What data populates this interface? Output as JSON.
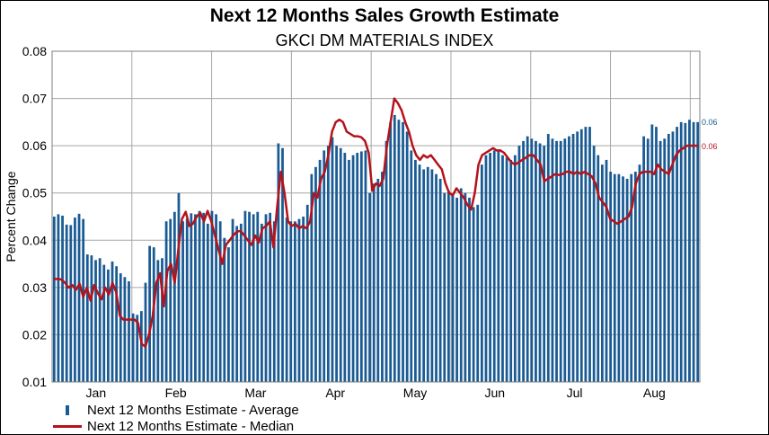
{
  "chart_data": {
    "type": "bar",
    "title": "Next 12 Months Sales Growth Estimate",
    "subtitle": "GKCI DM MATERIALS INDEX",
    "ylabel": "Percent Change",
    "xlabel": "",
    "ylim": [
      0.01,
      0.08
    ],
    "yticks": [
      "0.01",
      "0.02",
      "0.03",
      "0.04",
      "0.05",
      "0.06",
      "0.07",
      "0.08"
    ],
    "month_labels": [
      "Jan",
      "Feb",
      "Mar",
      "Apr",
      "May",
      "Jun",
      "Jul",
      "Aug"
    ],
    "grid": true,
    "legend_position": "bottom-left",
    "colors": {
      "average": "#1a5b94",
      "median": "#b5121b"
    },
    "end_labels": {
      "average": "0.06",
      "median": "0.06"
    },
    "series": [
      {
        "name": "Next 12 Months Estimate - Average",
        "type": "bar",
        "values": [
          0.045,
          0.0455,
          0.0452,
          0.0433,
          0.0432,
          0.0448,
          0.0456,
          0.0445,
          0.037,
          0.0368,
          0.0358,
          0.0362,
          0.0348,
          0.0338,
          0.0355,
          0.0345,
          0.033,
          0.0322,
          0.0313,
          0.0245,
          0.0242,
          0.025,
          0.031,
          0.0388,
          0.0385,
          0.0358,
          0.0362,
          0.044,
          0.0445,
          0.046,
          0.05,
          0.044,
          0.0445,
          0.0457,
          0.0455,
          0.0462,
          0.0458,
          0.0435,
          0.0462,
          0.0455,
          0.044,
          0.0405,
          0.0385,
          0.0445,
          0.043,
          0.0435,
          0.0462,
          0.046,
          0.0455,
          0.046,
          0.0435,
          0.0455,
          0.0458,
          0.044,
          0.0605,
          0.0595,
          0.0448,
          0.044,
          0.044,
          0.0445,
          0.045,
          0.0475,
          0.054,
          0.0555,
          0.057,
          0.059,
          0.06,
          0.0618,
          0.06,
          0.0595,
          0.0585,
          0.057,
          0.058,
          0.0585,
          0.0588,
          0.059,
          0.05,
          0.052,
          0.053,
          0.0545,
          0.061,
          0.065,
          0.0665,
          0.0655,
          0.065,
          0.063,
          0.059,
          0.057,
          0.056,
          0.055,
          0.0555,
          0.055,
          0.054,
          0.053,
          0.05,
          0.0505,
          0.0495,
          0.049,
          0.051,
          0.05,
          0.049,
          0.047,
          0.0475,
          0.056,
          0.058,
          0.0585,
          0.059,
          0.059,
          0.058,
          0.0575,
          0.057,
          0.058,
          0.06,
          0.061,
          0.062,
          0.0615,
          0.061,
          0.0605,
          0.06,
          0.0625,
          0.0615,
          0.061,
          0.061,
          0.0615,
          0.062,
          0.0625,
          0.063,
          0.0635,
          0.064,
          0.064,
          0.06,
          0.058,
          0.056,
          0.057,
          0.0545,
          0.054,
          0.054,
          0.0535,
          0.053,
          0.054,
          0.0545,
          0.056,
          0.062,
          0.0615,
          0.0645,
          0.064,
          0.061,
          0.0615,
          0.0625,
          0.063,
          0.064,
          0.065,
          0.0648,
          0.0655,
          0.065,
          0.065
        ]
      },
      {
        "name": "Next 12 Months Estimate - Median",
        "type": "line",
        "values": [
          0.0318,
          0.0318,
          0.0317,
          0.031,
          0.03,
          0.0305,
          0.0295,
          0.0308,
          0.028,
          0.03,
          0.0272,
          0.0305,
          0.0288,
          0.0275,
          0.03,
          0.0285,
          0.031,
          0.029,
          0.024,
          0.0232,
          0.0232,
          0.0232,
          0.0232,
          0.0225,
          0.018,
          0.0175,
          0.02,
          0.024,
          0.031,
          0.033,
          0.026,
          0.0335,
          0.035,
          0.031,
          0.038,
          0.0445,
          0.046,
          0.043,
          0.0435,
          0.045,
          0.0458,
          0.044,
          0.0462,
          0.044,
          0.041,
          0.038,
          0.035,
          0.039,
          0.04,
          0.041,
          0.0418,
          0.042,
          0.041,
          0.04,
          0.039,
          0.041,
          0.0395,
          0.0425,
          0.043,
          0.044,
          0.0385,
          0.047,
          0.0545,
          0.05,
          0.044,
          0.043,
          0.0435,
          0.0425,
          0.043,
          0.0425,
          0.044,
          0.05,
          0.049,
          0.053,
          0.0545,
          0.058,
          0.063,
          0.065,
          0.0655,
          0.065,
          0.063,
          0.0625,
          0.062,
          0.062,
          0.0618,
          0.061,
          0.0585,
          0.0505,
          0.052,
          0.0515,
          0.053,
          0.06,
          0.065,
          0.07,
          0.069,
          0.0675,
          0.065,
          0.063,
          0.06,
          0.058,
          0.057,
          0.058,
          0.0575,
          0.058,
          0.057,
          0.056,
          0.055,
          0.052,
          0.05,
          0.0495,
          0.051,
          0.05,
          0.049,
          0.0475,
          0.0465,
          0.05,
          0.056,
          0.058,
          0.0585,
          0.059,
          0.0595,
          0.059,
          0.059,
          0.0585,
          0.0575,
          0.0565,
          0.056,
          0.0565,
          0.057,
          0.0575,
          0.058,
          0.058,
          0.057,
          0.056,
          0.0525,
          0.053,
          0.0535,
          0.054,
          0.0538,
          0.054,
          0.0545,
          0.0545,
          0.054,
          0.0545,
          0.054,
          0.0545,
          0.054,
          0.0535,
          0.052,
          0.049,
          0.048,
          0.047,
          0.0445,
          0.044,
          0.0435,
          0.044,
          0.0445,
          0.045,
          0.047,
          0.052,
          0.054,
          0.0545,
          0.0545,
          0.0545,
          0.054,
          0.056,
          0.055,
          0.0545,
          0.054,
          0.056,
          0.058,
          0.059,
          0.0595,
          0.06,
          0.06,
          0.06,
          0.06
        ]
      }
    ]
  }
}
